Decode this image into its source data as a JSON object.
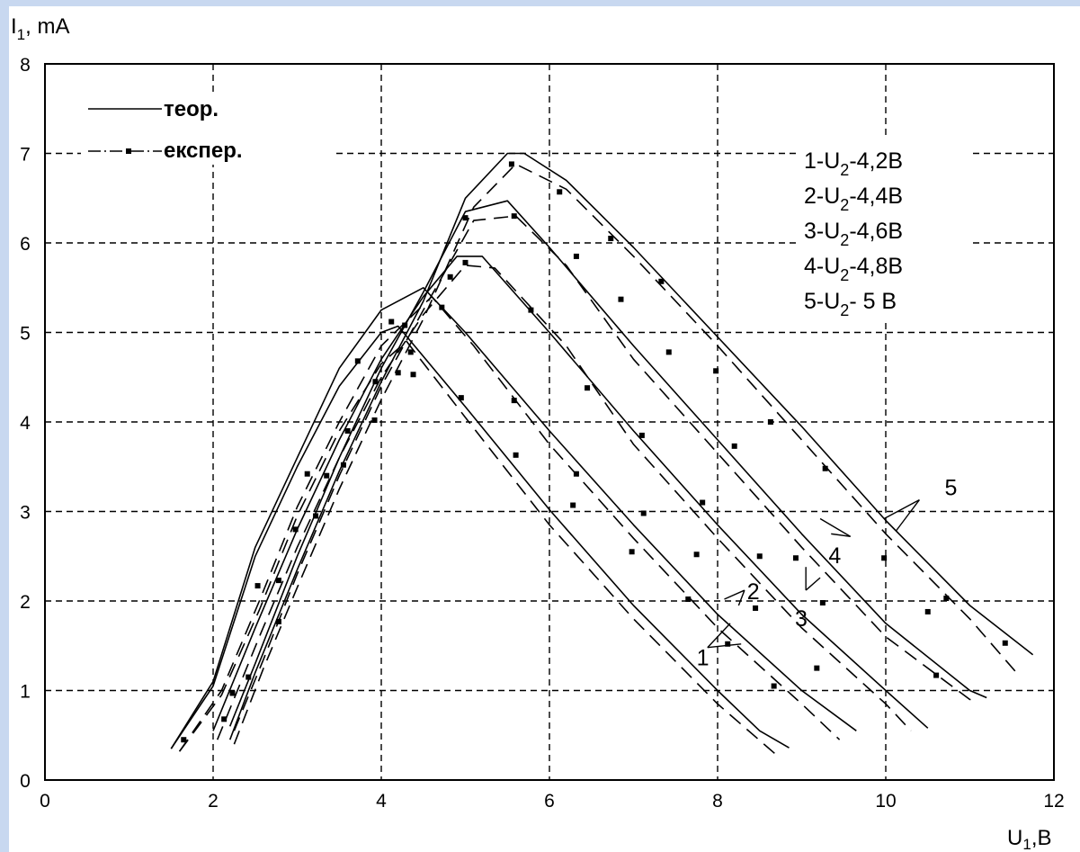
{
  "chart_data": {
    "type": "line",
    "ylabel_base": "I",
    "ylabel_sub": "1",
    "ylabel_unit": ", mA",
    "xlabel_base": "U",
    "xlabel_sub": "1",
    "xlabel_unit": ",B",
    "xlim": [
      0,
      12
    ],
    "ylim": [
      0,
      8
    ],
    "x_ticks": [
      "0",
      "2",
      "4",
      "6",
      "8",
      "10",
      "12"
    ],
    "y_ticks": [
      "0",
      "1",
      "2",
      "3",
      "4",
      "5",
      "6",
      "7",
      "8"
    ],
    "grid": true,
    "legend_position": "top-left",
    "legend": [
      {
        "label": "теор.",
        "style": "solid"
      },
      {
        "label": "експер.",
        "style": "dash-dot-marker"
      }
    ],
    "curve_labels": [
      {
        "num": "1",
        "sep": "-",
        "sym": "U",
        "sub": "2",
        "value": "-4,2B"
      },
      {
        "num": "2",
        "sep": "-",
        "sym": "U",
        "sub": "2",
        "value": "-4,4B"
      },
      {
        "num": "3",
        "sep": "-",
        "sym": "U",
        "sub": "2",
        "value": "-4,6B"
      },
      {
        "num": "4",
        "sep": "-",
        "sym": "U",
        "sub": "2",
        "value": "-4,8B"
      },
      {
        "num": "5",
        "sep": "-",
        "sym": "U",
        "sub": "2",
        "value": "- 5  B"
      }
    ],
    "curve_numbers": [
      "1",
      "2",
      "3",
      "4",
      "5"
    ],
    "series": [
      {
        "id": "1",
        "theory": [
          [
            1.5,
            0.35
          ],
          [
            2.0,
            1.05
          ],
          [
            2.5,
            2.5
          ],
          [
            3.0,
            3.5
          ],
          [
            3.5,
            4.4
          ],
          [
            4.0,
            5.0
          ],
          [
            4.2,
            5.07
          ],
          [
            5.0,
            4.17
          ],
          [
            6.0,
            3.02
          ],
          [
            7.0,
            1.95
          ],
          [
            8.0,
            1.0
          ],
          [
            8.5,
            0.55
          ],
          [
            8.85,
            0.36
          ]
        ],
        "exper": [
          [
            1.6,
            0.32
          ],
          [
            2.1,
            0.95
          ],
          [
            2.55,
            1.9
          ],
          [
            3.0,
            2.95
          ],
          [
            3.5,
            3.9
          ],
          [
            4.0,
            4.65
          ],
          [
            4.3,
            4.9
          ],
          [
            5.0,
            4.05
          ],
          [
            6.0,
            2.85
          ],
          [
            7.0,
            1.8
          ],
          [
            8.0,
            0.85
          ],
          [
            8.7,
            0.28
          ]
        ],
        "markers": [
          [
            2.23,
            0.97
          ],
          [
            2.78,
            2.23
          ],
          [
            3.35,
            3.4
          ],
          [
            3.93,
            4.45
          ],
          [
            4.35,
            4.78
          ],
          [
            4.95,
            4.27
          ],
          [
            5.6,
            3.63
          ],
          [
            6.28,
            3.07
          ],
          [
            6.98,
            2.55
          ],
          [
            7.65,
            2.02
          ],
          [
            8.12,
            1.52
          ],
          [
            8.67,
            1.05
          ]
        ]
      },
      {
        "id": "2",
        "theory": [
          [
            1.5,
            0.35
          ],
          [
            2.0,
            1.1
          ],
          [
            2.5,
            2.6
          ],
          [
            3.0,
            3.6
          ],
          [
            3.5,
            4.6
          ],
          [
            4.0,
            5.25
          ],
          [
            4.5,
            5.5
          ],
          [
            5.0,
            5.0
          ],
          [
            6.0,
            3.9
          ],
          [
            7.0,
            2.85
          ],
          [
            8.0,
            1.85
          ],
          [
            9.0,
            1.0
          ],
          [
            9.65,
            0.55
          ]
        ],
        "exper": [
          [
            1.6,
            0.32
          ],
          [
            2.1,
            1.0
          ],
          [
            2.55,
            2.0
          ],
          [
            3.0,
            3.05
          ],
          [
            3.5,
            4.0
          ],
          [
            4.0,
            4.85
          ],
          [
            4.6,
            5.4
          ],
          [
            5.1,
            4.85
          ],
          [
            6.0,
            3.75
          ],
          [
            7.0,
            2.7
          ],
          [
            8.0,
            1.7
          ],
          [
            9.0,
            0.85
          ],
          [
            9.45,
            0.45
          ]
        ],
        "markers": [
          [
            1.65,
            0.45
          ],
          [
            2.53,
            2.17
          ],
          [
            3.12,
            3.42
          ],
          [
            3.72,
            4.68
          ],
          [
            4.12,
            5.12
          ],
          [
            4.72,
            5.28
          ],
          [
            5.58,
            4.24
          ],
          [
            6.32,
            3.42
          ],
          [
            7.12,
            2.98
          ],
          [
            7.75,
            2.52
          ],
          [
            8.45,
            1.92
          ],
          [
            9.18,
            1.25
          ]
        ]
      },
      {
        "id": "3",
        "theory": [
          [
            2.0,
            0.55
          ],
          [
            2.5,
            1.7
          ],
          [
            3.0,
            2.8
          ],
          [
            3.5,
            3.8
          ],
          [
            4.0,
            4.7
          ],
          [
            4.5,
            5.4
          ],
          [
            4.9,
            5.85
          ],
          [
            5.2,
            5.85
          ],
          [
            6.0,
            5.0
          ],
          [
            7.0,
            3.9
          ],
          [
            8.0,
            2.85
          ],
          [
            9.0,
            1.85
          ],
          [
            10.0,
            1.0
          ],
          [
            10.5,
            0.58
          ]
        ],
        "exper": [
          [
            2.05,
            0.45
          ],
          [
            2.55,
            1.6
          ],
          [
            3.0,
            2.6
          ],
          [
            3.5,
            3.6
          ],
          [
            4.0,
            4.5
          ],
          [
            4.5,
            5.2
          ],
          [
            5.0,
            5.75
          ],
          [
            5.35,
            5.72
          ],
          [
            6.2,
            4.85
          ],
          [
            7.0,
            3.75
          ],
          [
            8.0,
            2.7
          ],
          [
            9.0,
            1.7
          ],
          [
            10.0,
            0.85
          ],
          [
            10.3,
            0.55
          ]
        ],
        "markers": [
          [
            2.13,
            0.68
          ],
          [
            2.98,
            2.8
          ],
          [
            3.6,
            3.9
          ],
          [
            4.28,
            5.08
          ],
          [
            5.0,
            5.78
          ],
          [
            5.78,
            5.25
          ],
          [
            6.45,
            4.38
          ],
          [
            7.1,
            3.85
          ],
          [
            7.82,
            3.1
          ],
          [
            8.5,
            2.5
          ],
          [
            9.25,
            1.98
          ],
          [
            10.6,
            1.17
          ]
        ]
      },
      {
        "id": "4",
        "theory": [
          [
            2.2,
            0.6
          ],
          [
            2.5,
            1.3
          ],
          [
            3.0,
            2.5
          ],
          [
            3.5,
            3.6
          ],
          [
            4.0,
            4.6
          ],
          [
            4.5,
            5.45
          ],
          [
            5.0,
            6.35
          ],
          [
            5.5,
            6.47
          ],
          [
            6.0,
            5.95
          ],
          [
            7.0,
            4.85
          ],
          [
            8.0,
            3.8
          ],
          [
            9.0,
            2.75
          ],
          [
            10.0,
            1.75
          ],
          [
            11.0,
            1.0
          ],
          [
            11.2,
            0.92
          ]
        ],
        "exper": [
          [
            2.25,
            0.55
          ],
          [
            2.6,
            1.35
          ],
          [
            3.0,
            2.3
          ],
          [
            3.5,
            3.4
          ],
          [
            4.0,
            4.4
          ],
          [
            4.5,
            5.25
          ],
          [
            5.1,
            6.25
          ],
          [
            5.6,
            6.3
          ],
          [
            6.2,
            5.75
          ],
          [
            7.0,
            4.7
          ],
          [
            8.0,
            3.65
          ],
          [
            9.0,
            2.6
          ],
          [
            10.0,
            1.6
          ],
          [
            11.0,
            0.9
          ],
          [
            11.05,
            0.9
          ]
        ],
        "markers": [
          [
            2.42,
            1.15
          ],
          [
            3.22,
            2.95
          ],
          [
            3.92,
            4.02
          ],
          [
            4.38,
            4.53
          ],
          [
            5.0,
            6.28
          ],
          [
            5.58,
            6.3
          ],
          [
            6.32,
            5.85
          ],
          [
            6.85,
            5.37
          ],
          [
            7.42,
            4.78
          ],
          [
            8.2,
            3.73
          ],
          [
            8.93,
            2.48
          ],
          [
            10.5,
            1.88
          ]
        ]
      },
      {
        "id": "5",
        "theory": [
          [
            2.2,
            0.45
          ],
          [
            2.5,
            1.2
          ],
          [
            3.0,
            2.35
          ],
          [
            3.5,
            3.45
          ],
          [
            4.0,
            4.45
          ],
          [
            4.5,
            5.35
          ],
          [
            5.0,
            6.5
          ],
          [
            5.5,
            7.0
          ],
          [
            5.7,
            7.0
          ],
          [
            6.2,
            6.7
          ],
          [
            7.0,
            5.95
          ],
          [
            8.0,
            4.95
          ],
          [
            9.0,
            3.95
          ],
          [
            10.0,
            2.9
          ],
          [
            11.0,
            1.95
          ],
          [
            11.75,
            1.4
          ]
        ],
        "exper": [
          [
            2.25,
            0.4
          ],
          [
            2.6,
            1.25
          ],
          [
            3.0,
            2.15
          ],
          [
            3.5,
            3.25
          ],
          [
            4.0,
            4.25
          ],
          [
            4.5,
            5.15
          ],
          [
            5.1,
            6.4
          ],
          [
            5.6,
            6.88
          ],
          [
            6.2,
            6.6
          ],
          [
            7.0,
            5.85
          ],
          [
            8.0,
            4.85
          ],
          [
            9.0,
            3.8
          ],
          [
            10.0,
            2.75
          ],
          [
            11.0,
            1.8
          ],
          [
            11.6,
            1.15
          ]
        ],
        "markers": [
          [
            2.78,
            1.77
          ],
          [
            3.55,
            3.52
          ],
          [
            4.2,
            4.55
          ],
          [
            4.82,
            5.62
          ],
          [
            5.55,
            6.88
          ],
          [
            6.12,
            6.57
          ],
          [
            6.73,
            6.05
          ],
          [
            7.33,
            5.57
          ],
          [
            7.98,
            4.57
          ],
          [
            8.63,
            4.0
          ],
          [
            9.28,
            3.48
          ],
          [
            9.98,
            2.48
          ],
          [
            10.72,
            2.03
          ],
          [
            11.42,
            1.53
          ]
        ]
      }
    ]
  }
}
